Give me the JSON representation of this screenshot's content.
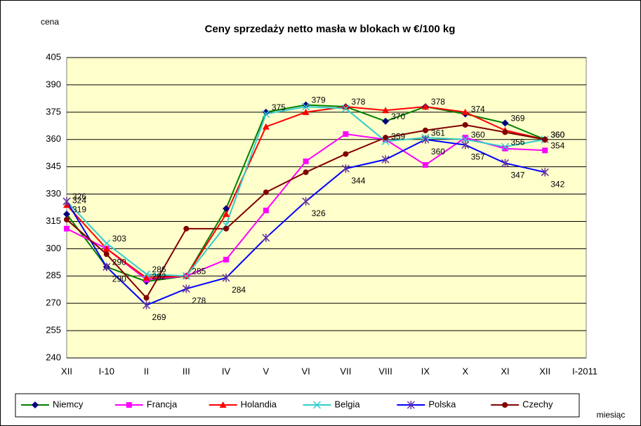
{
  "chart_data": {
    "type": "line",
    "title": "Ceny sprzedaży netto masła w blokach w €/100 kg",
    "y_label": "cena",
    "x_label": "miesiąc",
    "categories": [
      "XII",
      "I-10",
      "II",
      "III",
      "IV",
      "V",
      "VI",
      "VII",
      "VIII",
      "IX",
      "X",
      "XI",
      "XII",
      "I-2011"
    ],
    "ylim": [
      240,
      405
    ],
    "yticks": [
      240,
      255,
      270,
      285,
      300,
      315,
      330,
      345,
      360,
      375,
      390,
      405
    ],
    "grid": true,
    "legend": "bottom",
    "series": [
      {
        "name": "Niemcy",
        "color": "#008000",
        "marker_color": "#000080",
        "marker": "diamond",
        "values": [
          319,
          290,
          282,
          285,
          322,
          375,
          379,
          378,
          370,
          378,
          374,
          369,
          360,
          null
        ],
        "value_labels": [
          "319",
          "290",
          "282",
          null,
          null,
          "375",
          "379",
          "378",
          "370",
          "378",
          "374",
          "369",
          "360",
          null
        ]
      },
      {
        "name": "Francja",
        "color": "#ff00ff",
        "marker_color": "#ff00ff",
        "marker": "square",
        "values": [
          311,
          300,
          283,
          285,
          294,
          321,
          348,
          363,
          360,
          346,
          361,
          355,
          354,
          null
        ],
        "value_labels": [
          null,
          null,
          null,
          null,
          null,
          null,
          null,
          null,
          null,
          null,
          null,
          null,
          "354",
          null
        ]
      },
      {
        "name": "Holandia",
        "color": "#ff0000",
        "marker_color": "#ff0000",
        "marker": "triangle",
        "values": [
          324,
          300,
          284,
          285,
          319,
          367,
          375,
          378,
          376,
          378,
          375,
          365,
          360,
          null
        ],
        "value_labels": [
          "324",
          null,
          null,
          null,
          null,
          null,
          null,
          null,
          null,
          null,
          null,
          null,
          "360",
          null
        ]
      },
      {
        "name": "Belgia",
        "color": "#33cccc",
        "marker_color": "#33cccc",
        "marker": "x",
        "values": [
          326,
          303,
          286,
          285,
          313,
          374,
          378,
          377,
          359,
          361,
          360,
          356,
          360,
          null
        ],
        "value_labels": [
          "326",
          "303",
          "286",
          "285",
          null,
          null,
          null,
          null,
          "359",
          "361",
          "360",
          "356",
          null,
          null
        ]
      },
      {
        "name": "Polska",
        "color": "#0000ff",
        "marker_color": "#663399",
        "marker": "star",
        "values": [
          326,
          290,
          269,
          278,
          284,
          306,
          326,
          344,
          349,
          360,
          357,
          347,
          342,
          null
        ],
        "value_labels": [
          null,
          "290",
          "269",
          "278",
          "284",
          null,
          "326",
          "344",
          null,
          "360",
          "357",
          "347",
          "342",
          null
        ]
      },
      {
        "name": "Czechy",
        "color": "#800000",
        "marker_color": "#800000",
        "marker": "circle",
        "values": [
          316,
          297,
          273,
          311,
          311,
          331,
          342,
          352,
          361,
          365,
          368,
          364,
          360,
          null
        ]
      }
    ]
  }
}
